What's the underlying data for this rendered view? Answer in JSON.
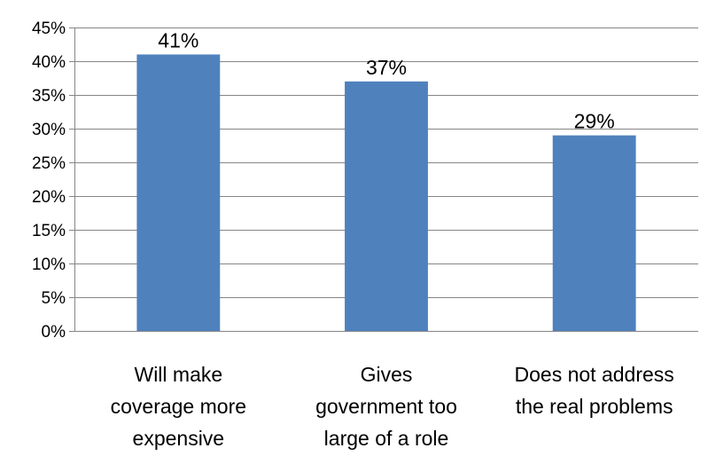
{
  "chart_data": {
    "type": "bar",
    "title": "",
    "xlabel": "",
    "ylabel": "",
    "categories": [
      [
        "Will make",
        "coverage more",
        "expensive"
      ],
      [
        "Gives",
        "government too",
        "large of a role"
      ],
      [
        "Does not address",
        "the real problems"
      ]
    ],
    "values": [
      41,
      37,
      29
    ],
    "data_labels": [
      "41%",
      "37%",
      "29%"
    ],
    "ylim": [
      0,
      45
    ],
    "yticks": [
      0,
      5,
      10,
      15,
      20,
      25,
      30,
      35,
      40,
      45
    ],
    "ytick_labels": [
      "0%",
      "5%",
      "10%",
      "15%",
      "20%",
      "25%",
      "30%",
      "35%",
      "40%",
      "45%"
    ],
    "grid": true,
    "legend": "none",
    "colors": {
      "bar": "#4f81bd",
      "grid": "#868686",
      "axis": "#868686",
      "text": "#000000"
    }
  }
}
